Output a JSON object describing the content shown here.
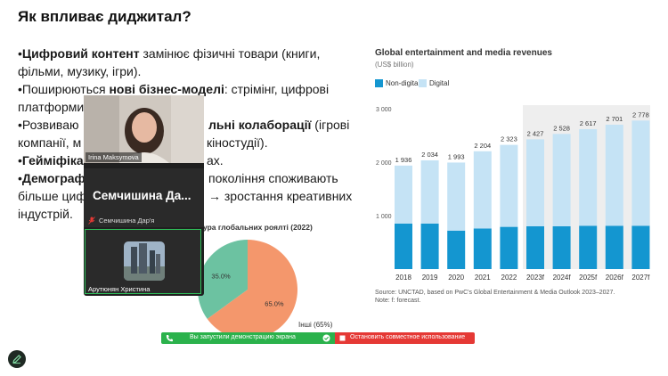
{
  "slide": {
    "title": "Як впливає диджитал?",
    "bullets": [
      {
        "pre": "•",
        "bold": "Цифровий контент",
        "rest": " замінює фізичні товари (книги,"
      },
      {
        "pre": "фільми, музику, ігри).",
        "bold": "",
        "rest": ""
      },
      {
        "pre": "•Поширюються ",
        "bold": "нові бізнес-моделі",
        "rest": ": стрімінг, цифрові"
      },
      {
        "pre": "платформи",
        "bold": "",
        "rest": ""
      },
      {
        "pre": "•Розвиваю",
        "bold": "",
        "rest": ""
      },
      {
        "pre": "",
        "bold": "льні колаборації",
        "rest": " (ігрові"
      },
      {
        "pre": "компанії, м",
        "bold": "",
        "rest": ""
      },
      {
        "pre": "кіностудії).",
        "bold": "",
        "rest": ""
      },
      {
        "pre": "•",
        "bold": "Гейміфіка",
        "rest": ""
      },
      {
        "pre": "ах.",
        "bold": "",
        "rest": ""
      },
      {
        "pre": "•",
        "bold": "Демограф",
        "rest": ""
      },
      {
        "pre": "покоління споживають",
        "bold": "",
        "rest": ""
      },
      {
        "pre": "більше циф",
        "bold": "",
        "rest": ""
      },
      {
        "pre": "→ зростання креативних",
        "bold": "",
        "rest": ""
      },
      {
        "pre": "індустрій.",
        "bold": "",
        "rest": ""
      }
    ]
  },
  "chart_data": [
    {
      "type": "bar",
      "title": "Global entertainment and media revenues",
      "subtitle": "(US$ billion)",
      "legend": [
        "Non-digital",
        "Digital"
      ],
      "legend_position": "top-left",
      "categories": [
        "2018",
        "2019",
        "2020",
        "2021",
        "2022",
        "2023f",
        "2024f",
        "2025f",
        "2026f",
        "2027f"
      ],
      "series": [
        {
          "name": "Non-digital",
          "values": [
            850,
            850,
            720,
            760,
            790,
            800,
            800,
            810,
            810,
            810
          ],
          "color": "#1496d0"
        },
        {
          "name": "Digital",
          "values": [
            1086,
            1184,
            1273,
            1444,
            1533,
            1627,
            1728,
            1807,
            1891,
            1968
          ],
          "color": "#c5e3f5"
        }
      ],
      "totals": [
        "1 936",
        "2 034",
        "1 993",
        "2 204",
        "2 323",
        "2 427",
        "2 528",
        "2 617",
        "2 701",
        "2 778"
      ],
      "yticks": [
        "1 000",
        "2 000",
        "3 000"
      ],
      "ylim": [
        0,
        3000
      ],
      "grid": false,
      "forecast_shaded_from": "2023f",
      "source": "Source:  UNCTAD, based on PwC's Global Entertainment & Media Outlook 2023–2027.",
      "note": "Note: f: forecast."
    },
    {
      "type": "pie",
      "title": "ура глобальних роялті (2022)",
      "slices": [
        {
          "label": "Інші (65%)",
          "value": 65.0,
          "pct_label": "65.0%",
          "color": "#f4976c"
        },
        {
          "label": "",
          "value": 35.0,
          "pct_label": "35.0%",
          "color": "#6cc2a1"
        }
      ]
    }
  ],
  "video": {
    "tiles": [
      {
        "name": "Irina Maksymova"
      },
      {
        "name": "Семчишина Дар'я",
        "big_label": "Семчишина   Да..."
      },
      {
        "name": "Арутюнян Христина"
      }
    ]
  },
  "share_bar": {
    "left_label": "Вы запустили демонстрацию экрана",
    "right_label": "Остановить совместное использование"
  },
  "icons": {
    "mic_muted": "mic-muted-icon",
    "phone": "phone-icon",
    "edit": "pencil-icon"
  }
}
